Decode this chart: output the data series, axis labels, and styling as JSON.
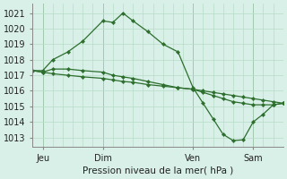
{
  "background_color": "#d8f0e8",
  "grid_color": "#b8dcc8",
  "line_color": "#2d6e2d",
  "marker_color": "#2d6e2d",
  "xlabel": "Pression niveau de la mer( hPa )",
  "ylabel_ticks": [
    1013,
    1014,
    1015,
    1016,
    1017,
    1018,
    1019,
    1020,
    1021
  ],
  "ylim": [
    1012.4,
    1021.6
  ],
  "xlim": [
    0,
    100
  ],
  "xtick_positions": [
    4,
    28,
    64,
    88
  ],
  "xtick_labels": [
    "Jeu",
    "Dim",
    "Ven",
    "Sam"
  ],
  "vline_positions": [
    4,
    28,
    64,
    88
  ],
  "num_x_gridlines": 25,
  "series": [
    {
      "x": [
        0,
        4,
        8,
        14,
        20,
        28,
        32,
        36,
        40,
        46,
        52,
        58,
        64,
        68,
        72,
        76,
        80,
        84,
        88,
        92,
        96,
        100
      ],
      "y": [
        1017.3,
        1017.3,
        1018.0,
        1018.5,
        1019.2,
        1020.5,
        1020.4,
        1021.0,
        1020.5,
        1019.8,
        1019.0,
        1018.5,
        1016.2,
        1015.2,
        1014.2,
        1013.2,
        1012.8,
        1012.85,
        1014.0,
        1014.5,
        1015.1,
        1015.2
      ]
    },
    {
      "x": [
        0,
        4,
        8,
        14,
        20,
        28,
        32,
        36,
        40,
        46,
        52,
        58,
        64,
        68,
        72,
        76,
        80,
        84,
        88,
        92,
        96,
        100
      ],
      "y": [
        1017.3,
        1017.2,
        1017.4,
        1017.4,
        1017.3,
        1017.2,
        1017.0,
        1016.9,
        1016.8,
        1016.6,
        1016.4,
        1016.2,
        1016.1,
        1015.9,
        1015.7,
        1015.5,
        1015.3,
        1015.2,
        1015.1,
        1015.1,
        1015.1,
        1015.2
      ]
    },
    {
      "x": [
        0,
        4,
        8,
        14,
        20,
        28,
        32,
        36,
        40,
        46,
        52,
        58,
        64,
        68,
        72,
        76,
        80,
        84,
        88,
        92,
        96,
        100
      ],
      "y": [
        1017.3,
        1017.2,
        1017.1,
        1017.0,
        1016.9,
        1016.8,
        1016.7,
        1016.6,
        1016.55,
        1016.4,
        1016.3,
        1016.2,
        1016.1,
        1016.0,
        1015.9,
        1015.8,
        1015.7,
        1015.6,
        1015.5,
        1015.4,
        1015.3,
        1015.2
      ]
    }
  ]
}
